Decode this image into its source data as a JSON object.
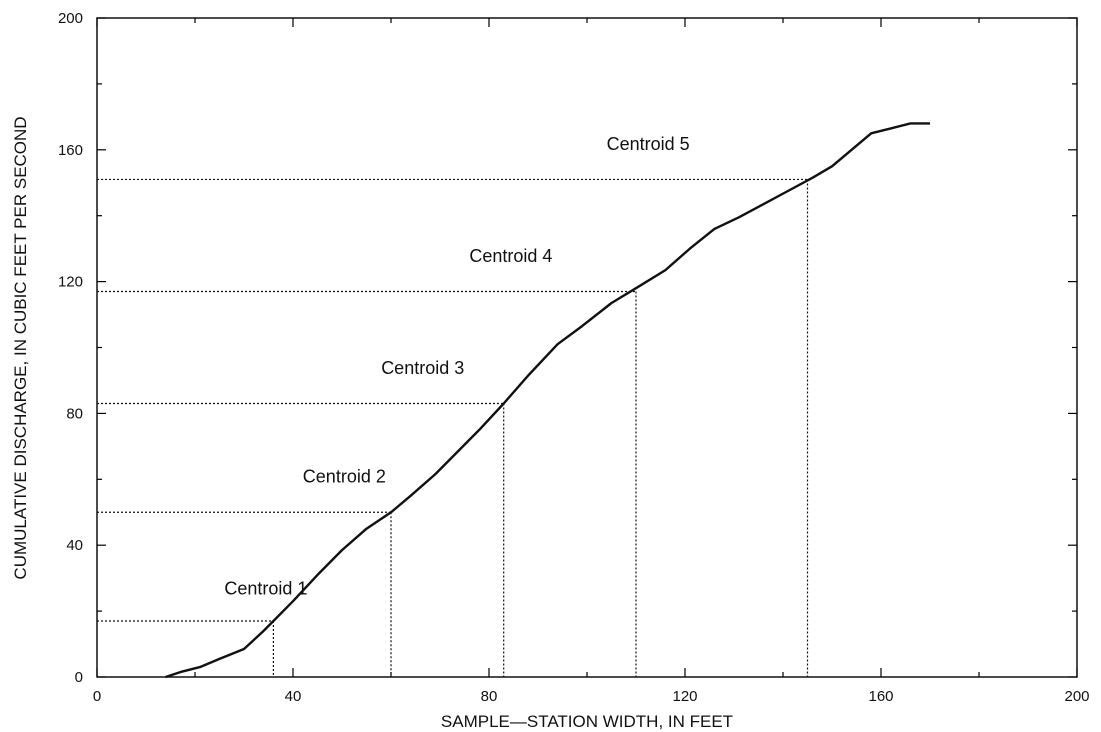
{
  "chart_data": {
    "type": "line",
    "xlabel": "SAMPLE—STATION WIDTH, IN FEET",
    "ylabel": "CUMULATIVE DISCHARGE, IN CUBIC FEET PER SECOND",
    "xlim": [
      0,
      200
    ],
    "ylim": [
      0,
      200
    ],
    "x_ticks": [
      0,
      40,
      80,
      120,
      160,
      200
    ],
    "y_ticks": [
      0,
      40,
      80,
      120,
      160,
      200
    ],
    "x_minor_ticks": [
      20,
      60,
      100,
      140,
      180
    ],
    "y_minor_ticks": [
      20,
      60,
      100,
      140,
      180
    ],
    "grid": false,
    "series": [
      {
        "x": [
          14,
          17,
          21,
          25,
          30,
          34,
          36,
          40,
          45,
          50,
          55,
          60,
          64,
          69,
          73,
          78,
          83,
          88,
          94,
          99,
          105,
          110,
          116,
          121,
          126,
          131,
          136,
          141,
          146,
          150,
          154,
          158,
          162,
          166,
          170
        ],
        "y": [
          0,
          1.5,
          3,
          5.5,
          8.5,
          14,
          17,
          23,
          31,
          38.5,
          45,
          50,
          55,
          61.5,
          67.5,
          75,
          83,
          91.5,
          101,
          106.5,
          113.5,
          118,
          123.5,
          130,
          136,
          139.5,
          143.5,
          147.5,
          151.5,
          155,
          160,
          165,
          166.5,
          168,
          168
        ]
      }
    ],
    "centroids": [
      {
        "label": "Centroid 1",
        "x": 36,
        "y": 17,
        "label_x": 26,
        "label_y": 25
      },
      {
        "label": "Centroid 2",
        "x": 60,
        "y": 50,
        "label_x": 42,
        "label_y": 59
      },
      {
        "label": "Centroid 3",
        "x": 83,
        "y": 83,
        "label_x": 58,
        "label_y": 92
      },
      {
        "label": "Centroid 4",
        "x": 110,
        "y": 117,
        "label_x": 76,
        "label_y": 126
      },
      {
        "label": "Centroid 5",
        "x": 145,
        "y": 151,
        "label_x": 104,
        "label_y": 160
      }
    ]
  }
}
